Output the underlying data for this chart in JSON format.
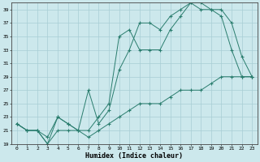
{
  "xlabel": "Humidex (Indice chaleur)",
  "xlim_left": -0.5,
  "xlim_right": 23.5,
  "ylim": [
    19,
    40
  ],
  "yticks": [
    19,
    21,
    23,
    25,
    27,
    29,
    31,
    33,
    35,
    37,
    39
  ],
  "xticks": [
    0,
    1,
    2,
    3,
    4,
    5,
    6,
    7,
    8,
    9,
    10,
    11,
    12,
    13,
    14,
    15,
    16,
    17,
    18,
    19,
    20,
    21,
    22,
    23
  ],
  "line_color": "#2a7d6e",
  "bg_color": "#cce8ec",
  "grid_color": "#a8cdd4",
  "line1_x": [
    0,
    1,
    2,
    3,
    4,
    5,
    6,
    7,
    8,
    9,
    10,
    11,
    12,
    13,
    14,
    15,
    16,
    17,
    18,
    19,
    20,
    21,
    22,
    23
  ],
  "line1_y": [
    22,
    21,
    21,
    19,
    23,
    22,
    21,
    27,
    22,
    24,
    30,
    33,
    37,
    37,
    36,
    38,
    39,
    40,
    40,
    39,
    39,
    37,
    32,
    29
  ],
  "line2_x": [
    0,
    1,
    2,
    3,
    4,
    5,
    6,
    7,
    8,
    9,
    10,
    11,
    12,
    13,
    14,
    15,
    16,
    17,
    18,
    19,
    20,
    21,
    22,
    23
  ],
  "line2_y": [
    22,
    21,
    21,
    20,
    23,
    22,
    21,
    21,
    23,
    25,
    35,
    36,
    33,
    33,
    33,
    36,
    38,
    40,
    39,
    39,
    38,
    33,
    29,
    29
  ],
  "line3_x": [
    0,
    1,
    2,
    3,
    4,
    5,
    6,
    7,
    8,
    9,
    10,
    11,
    12,
    13,
    14,
    15,
    16,
    17,
    18,
    19,
    20,
    21,
    22,
    23
  ],
  "line3_y": [
    22,
    21,
    21,
    19,
    21,
    21,
    21,
    20,
    21,
    22,
    23,
    24,
    25,
    25,
    25,
    26,
    27,
    27,
    27,
    28,
    29,
    29,
    29,
    29
  ]
}
